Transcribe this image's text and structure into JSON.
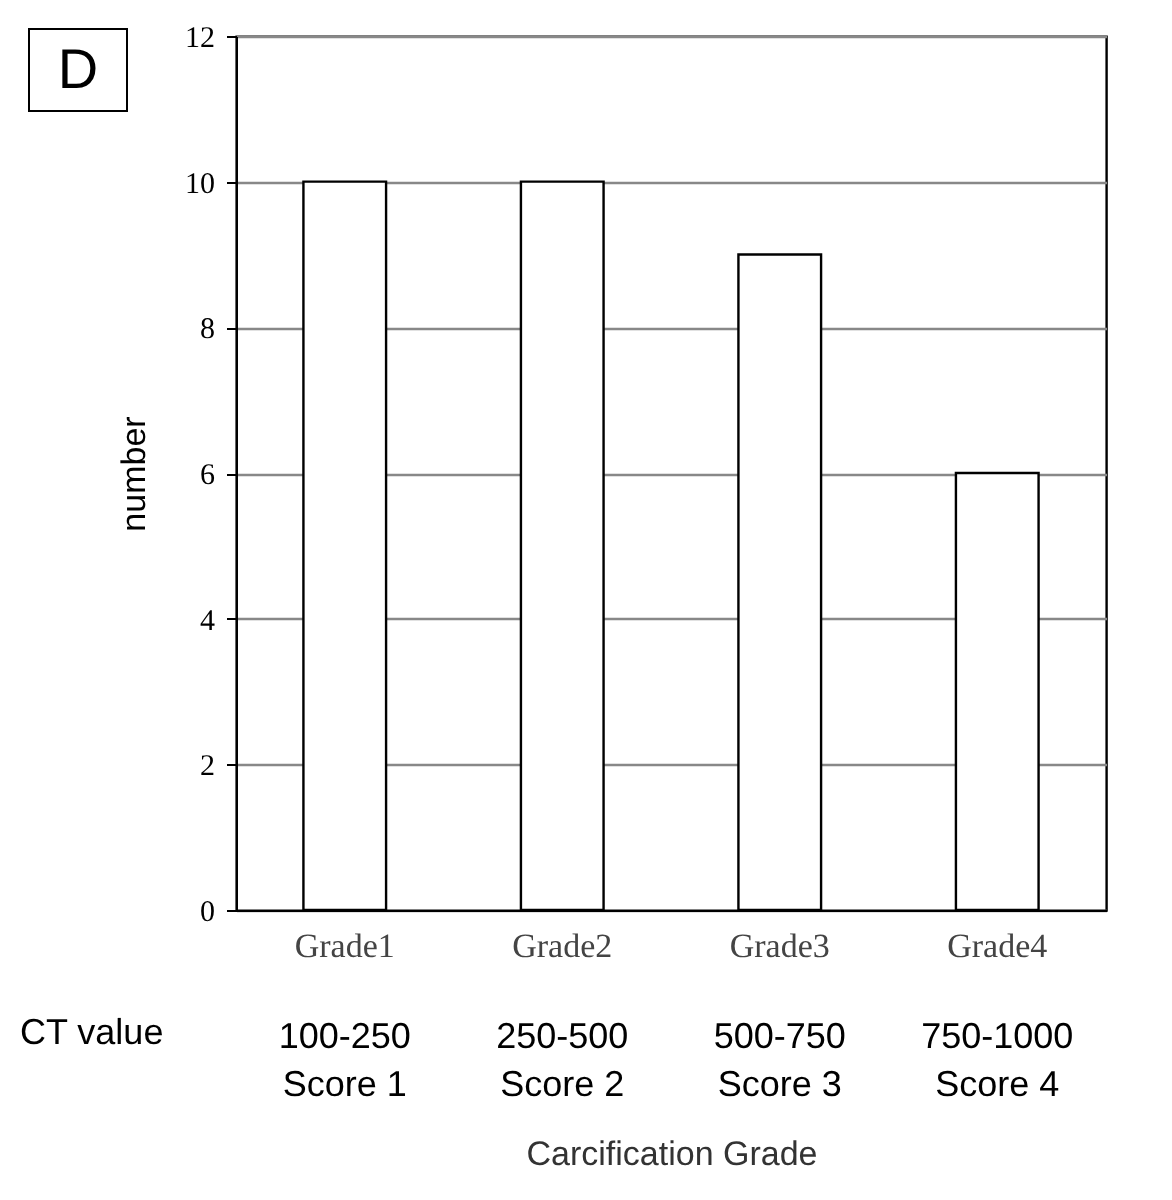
{
  "chart_data": {
    "type": "bar",
    "xlabel": "Carcification Grade",
    "ylabel": "number",
    "categories": [
      "Grade1",
      "Grade2",
      "Grade3",
      "Grade4"
    ],
    "values": [
      10,
      10,
      9,
      6
    ],
    "color": "#ffffff",
    "ylim": [
      0,
      12
    ],
    "yticks": [
      0,
      2,
      4,
      6,
      8,
      10,
      12
    ],
    "grid": "y",
    "annotations": [
      "D",
      "CT value",
      "100-250",
      "250-500",
      "500-750",
      "750-1000",
      "Score 1",
      "Score 2",
      "Score 3",
      "Score 4"
    ]
  }
}
